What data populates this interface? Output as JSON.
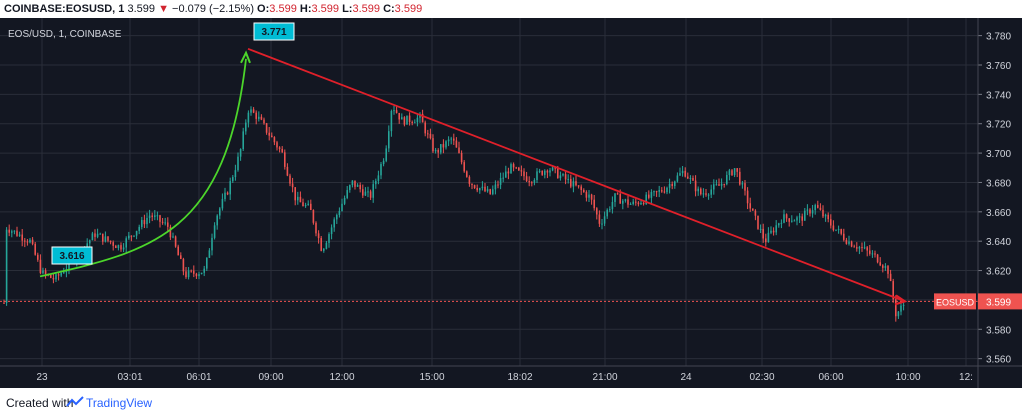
{
  "header": {
    "symbol": "COINBASE:EOSUSD, 1",
    "last": "3.599",
    "arrow": "▼",
    "change": "−0.079 (−2.15%)",
    "o_label": "O:",
    "o_val": "3.599",
    "h_label": "H:",
    "h_val": "3.599",
    "l_label": "L:",
    "l_val": "3.599",
    "c_label": "C:",
    "c_val": "3.599"
  },
  "chart_data": {
    "type": "candlestick",
    "title": "EOS/USD, 1, COINBASE",
    "y_ticks": [
      "3.780",
      "3.760",
      "3.740",
      "3.720",
      "3.700",
      "3.680",
      "3.660",
      "3.640",
      "3.620",
      "3.600",
      "3.580",
      "3.560"
    ],
    "ylim": [
      3.555,
      3.792
    ],
    "x_ticks": [
      "23",
      "03:01",
      "06:01",
      "09:00",
      "12:00",
      "15:00",
      "18:02",
      "21:00",
      "24",
      "02:30",
      "06:00",
      "10:00",
      "12:"
    ],
    "price_label": {
      "name": "EOSUSD",
      "value": "3.599"
    },
    "annotations": [
      {
        "text": "3.616",
        "value": 3.616
      },
      {
        "text": "3.771",
        "value": 3.771
      }
    ],
    "trend_lines": [
      {
        "from": 3.616,
        "to": 3.771,
        "color": "#4cd62b",
        "label_from": "3.616",
        "label_to": "3.771"
      },
      {
        "from": 3.771,
        "to": 3.599,
        "color": "#e0202a",
        "label_from": "3.771",
        "label_to": "3.599"
      }
    ],
    "colors": {
      "up": "#26a69a",
      "down": "#ef5350",
      "background": "#131722",
      "grid": "#2a2e39",
      "price_line": "#ef5350",
      "label_bg": "#00bcd4"
    }
  },
  "footer": {
    "created": "Created with",
    "brand": "TradingView"
  }
}
